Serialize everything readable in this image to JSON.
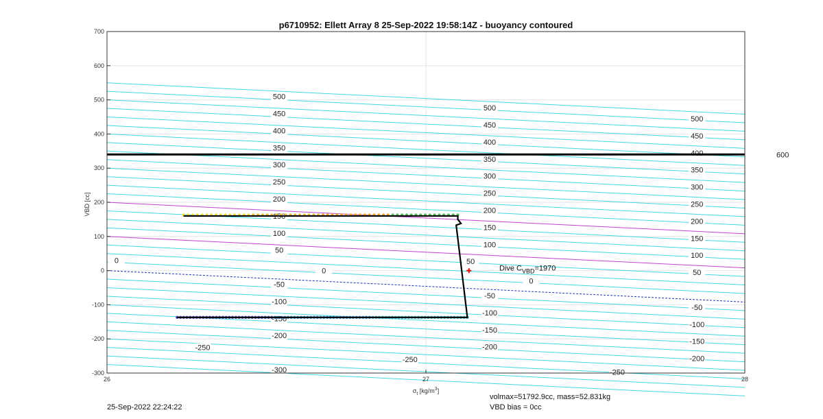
{
  "chart_data": {
    "type": "line",
    "title": "p6710952: Ellett Array 8 25-Sep-2022 19:58:14Z - buoyancy contoured",
    "xlabel": "σ",
    "xlabel_sub": "t",
    "xlabel_unit": " [kg/m",
    "xlabel_sup": "3",
    "xlabel_close": "]",
    "ylabel": "VBD [cc]",
    "xlim": [
      26,
      28
    ],
    "ylim": [
      -300,
      700
    ],
    "xticks": [
      "26",
      "27",
      "28"
    ],
    "yticks": [
      "700",
      "600",
      "500",
      "400",
      "300",
      "200",
      "100",
      "0",
      "-100",
      "-200",
      "-300"
    ],
    "grid": true,
    "contours": {
      "slope_per_sigma": -46,
      "offsets_at_26": [
        -275,
        -250,
        -225,
        -200,
        -175,
        -150,
        -125,
        -100,
        -75,
        -50,
        -25,
        0,
        25,
        50,
        75,
        100,
        125,
        150,
        175,
        200,
        225,
        250,
        275,
        300,
        325,
        350,
        375,
        400,
        425,
        450,
        475,
        500,
        525,
        550
      ],
      "highlight_magenta": [
        100,
        200
      ],
      "highlight_blue": [
        0
      ],
      "colors": {
        "cyan": "#40d8e0",
        "magenta": "#c040d0",
        "blue": "#2030b0"
      }
    },
    "contour_labels": [
      {
        "t": "500",
        "x": 26.54,
        "y": 510
      },
      {
        "t": "450",
        "x": 26.54,
        "y": 460
      },
      {
        "t": "400",
        "x": 26.54,
        "y": 410
      },
      {
        "t": "350",
        "x": 26.54,
        "y": 360
      },
      {
        "t": "300",
        "x": 26.54,
        "y": 310
      },
      {
        "t": "250",
        "x": 26.54,
        "y": 260
      },
      {
        "t": "200",
        "x": 26.54,
        "y": 210
      },
      {
        "t": "150",
        "x": 26.54,
        "y": 160
      },
      {
        "t": "100",
        "x": 26.54,
        "y": 110
      },
      {
        "t": "50",
        "x": 26.54,
        "y": 60
      },
      {
        "t": "0",
        "x": 26.68,
        "y": 0
      },
      {
        "t": "-50",
        "x": 26.54,
        "y": -40
      },
      {
        "t": "-100",
        "x": 26.54,
        "y": -90
      },
      {
        "t": "-150",
        "x": 26.54,
        "y": -140
      },
      {
        "t": "-200",
        "x": 26.54,
        "y": -190
      },
      {
        "t": "-250",
        "x": 26.3,
        "y": -225
      },
      {
        "t": "-300",
        "x": 26.54,
        "y": -290
      },
      {
        "t": "500",
        "x": 27.2,
        "y": 477
      },
      {
        "t": "450",
        "x": 27.2,
        "y": 427
      },
      {
        "t": "400",
        "x": 27.2,
        "y": 377
      },
      {
        "t": "350",
        "x": 27.2,
        "y": 327
      },
      {
        "t": "300",
        "x": 27.2,
        "y": 277
      },
      {
        "t": "250",
        "x": 27.2,
        "y": 227
      },
      {
        "t": "200",
        "x": 27.2,
        "y": 177
      },
      {
        "t": "150",
        "x": 27.2,
        "y": 127
      },
      {
        "t": "100",
        "x": 27.2,
        "y": 77
      },
      {
        "t": "50",
        "x": 27.14,
        "y": 27
      },
      {
        "t": "0",
        "x": 27.33,
        "y": -30
      },
      {
        "t": "-50",
        "x": 27.2,
        "y": -73
      },
      {
        "t": "-100",
        "x": 27.2,
        "y": -123
      },
      {
        "t": "-150",
        "x": 27.2,
        "y": -173
      },
      {
        "t": "-200",
        "x": 27.2,
        "y": -223
      },
      {
        "t": "-250",
        "x": 26.95,
        "y": -260
      },
      {
        "t": "500",
        "x": 27.85,
        "y": 445
      },
      {
        "t": "450",
        "x": 27.85,
        "y": 395
      },
      {
        "t": "400",
        "x": 27.85,
        "y": 345
      },
      {
        "t": "350",
        "x": 27.85,
        "y": 295
      },
      {
        "t": "300",
        "x": 27.85,
        "y": 245
      },
      {
        "t": "250",
        "x": 27.85,
        "y": 195
      },
      {
        "t": "200",
        "x": 27.85,
        "y": 145
      },
      {
        "t": "150",
        "x": 27.85,
        "y": 95
      },
      {
        "t": "100",
        "x": 27.85,
        "y": 45
      },
      {
        "t": "50",
        "x": 27.85,
        "y": -5
      },
      {
        "t": "-50",
        "x": 27.85,
        "y": -107
      },
      {
        "t": "-100",
        "x": 27.85,
        "y": -157
      },
      {
        "t": "-150",
        "x": 27.85,
        "y": -207
      },
      {
        "t": "-200",
        "x": 27.85,
        "y": -257
      },
      {
        "t": "-250",
        "x": 27.6,
        "y": -297
      },
      {
        "t": "0",
        "x": 26.03,
        "y": 30
      }
    ],
    "horizontal_line": {
      "y": 340,
      "label": "600"
    },
    "dive_path": {
      "x": [
        26.24,
        27.1,
        27.1,
        27.11,
        27.095,
        27.13,
        27.13,
        26.22
      ],
      "y": [
        160,
        160,
        150,
        138,
        133,
        -137,
        -137,
        -137
      ]
    },
    "dive_points_upper": {
      "x_start": 26.24,
      "x_end": 27.1,
      "y": 163,
      "colors": [
        "#f0e040",
        "#e8c040",
        "#f0a830",
        "#60c060"
      ]
    },
    "dive_points_lower": {
      "x_start": 26.22,
      "x_end": 27.13,
      "y": -137,
      "colors": [
        "#5050c0",
        "#3a8ad0",
        "#40b0c0"
      ]
    },
    "marker": {
      "x": 27.135,
      "y": 0,
      "color": "#e01010"
    },
    "annotation": {
      "pre": "Dive C",
      "sub": "VBD",
      "post": "=1970",
      "x": 27.23,
      "y": 0
    }
  },
  "footer": {
    "timestamp": "25-Sep-2022 22:24:22",
    "volmax_mass": "volmax=51792.9cc, mass=52.831kg",
    "vbd_bias": "VBD bias = 0cc"
  }
}
